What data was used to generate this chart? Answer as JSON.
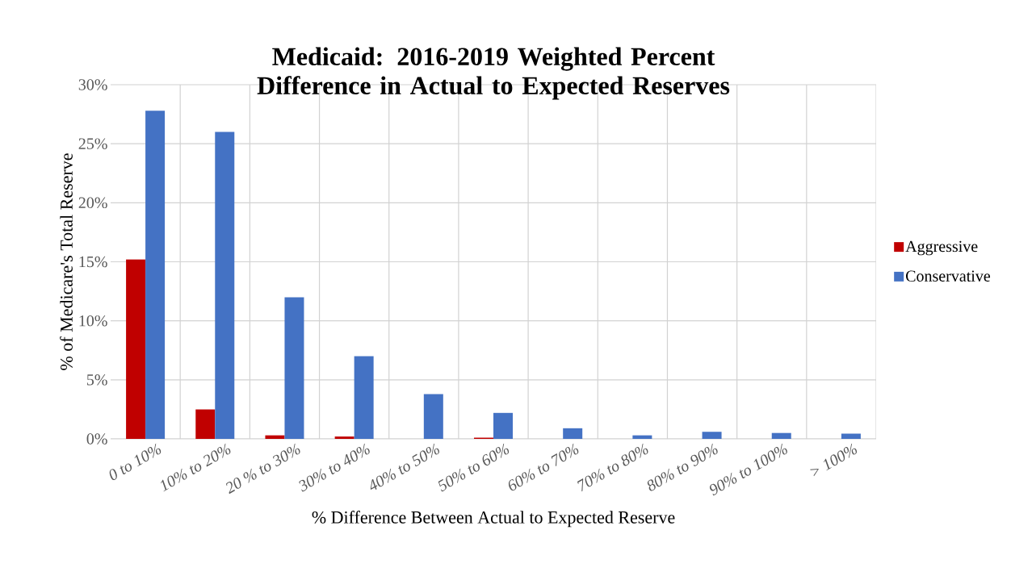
{
  "chart_data": {
    "type": "bar",
    "title": "Medicaid: 2016-2019 Weighted Percent Difference in Actual to Expected Reserves",
    "xlabel": "% Difference Between Actual to Expected Reserve",
    "ylabel": "% of Medicare's Total Reserve",
    "categories": [
      "0 to 10%",
      "10% to 20%",
      "20 % to 30%",
      "30% to 40%",
      "40% to 50%",
      "50% to 60%",
      "60% to 70%",
      "70% to 80%",
      "80% to 90%",
      "90% to 100%",
      "> 100%"
    ],
    "series": [
      {
        "name": "Aggressive",
        "color": "#c00000",
        "values": [
          15.2,
          2.5,
          0.3,
          0.2,
          null,
          0.1,
          null,
          null,
          null,
          null,
          null
        ]
      },
      {
        "name": "Conservative",
        "color": "#4472c4",
        "values": [
          27.8,
          26.0,
          12.0,
          7.0,
          3.8,
          2.2,
          0.9,
          0.3,
          0.6,
          0.5,
          0.45
        ]
      }
    ],
    "ylim": [
      0,
      30
    ],
    "yticks": [
      {
        "value": 0,
        "label": "0%"
      },
      {
        "value": 5,
        "label": "5%"
      },
      {
        "value": 10,
        "label": "10%"
      },
      {
        "value": 15,
        "label": "15%"
      },
      {
        "value": 20,
        "label": "20%"
      },
      {
        "value": 25,
        "label": "25%"
      },
      {
        "value": 30,
        "label": "30%"
      }
    ],
    "grid": true,
    "legend": "right"
  }
}
